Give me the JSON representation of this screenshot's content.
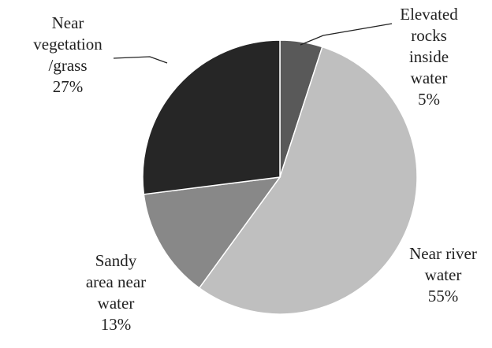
{
  "chart_data": {
    "type": "pie",
    "slices": [
      {
        "label_lines": [
          "Elevated",
          "rocks",
          "inside",
          "water",
          "5%"
        ],
        "value": 5,
        "color": "#595959"
      },
      {
        "label_lines": [
          "Near river",
          "water",
          "55%"
        ],
        "value": 55,
        "color": "#bfbfbf"
      },
      {
        "label_lines": [
          "Sandy",
          "area near",
          "water",
          "13%"
        ],
        "value": 13,
        "color": "#888888"
      },
      {
        "label_lines": [
          "Near",
          "vegetation",
          "/grass",
          "27%"
        ],
        "value": 27,
        "color": "#262626"
      }
    ],
    "start": "top",
    "direction": "clockwise",
    "legend": "none",
    "data_labels": "outside"
  }
}
